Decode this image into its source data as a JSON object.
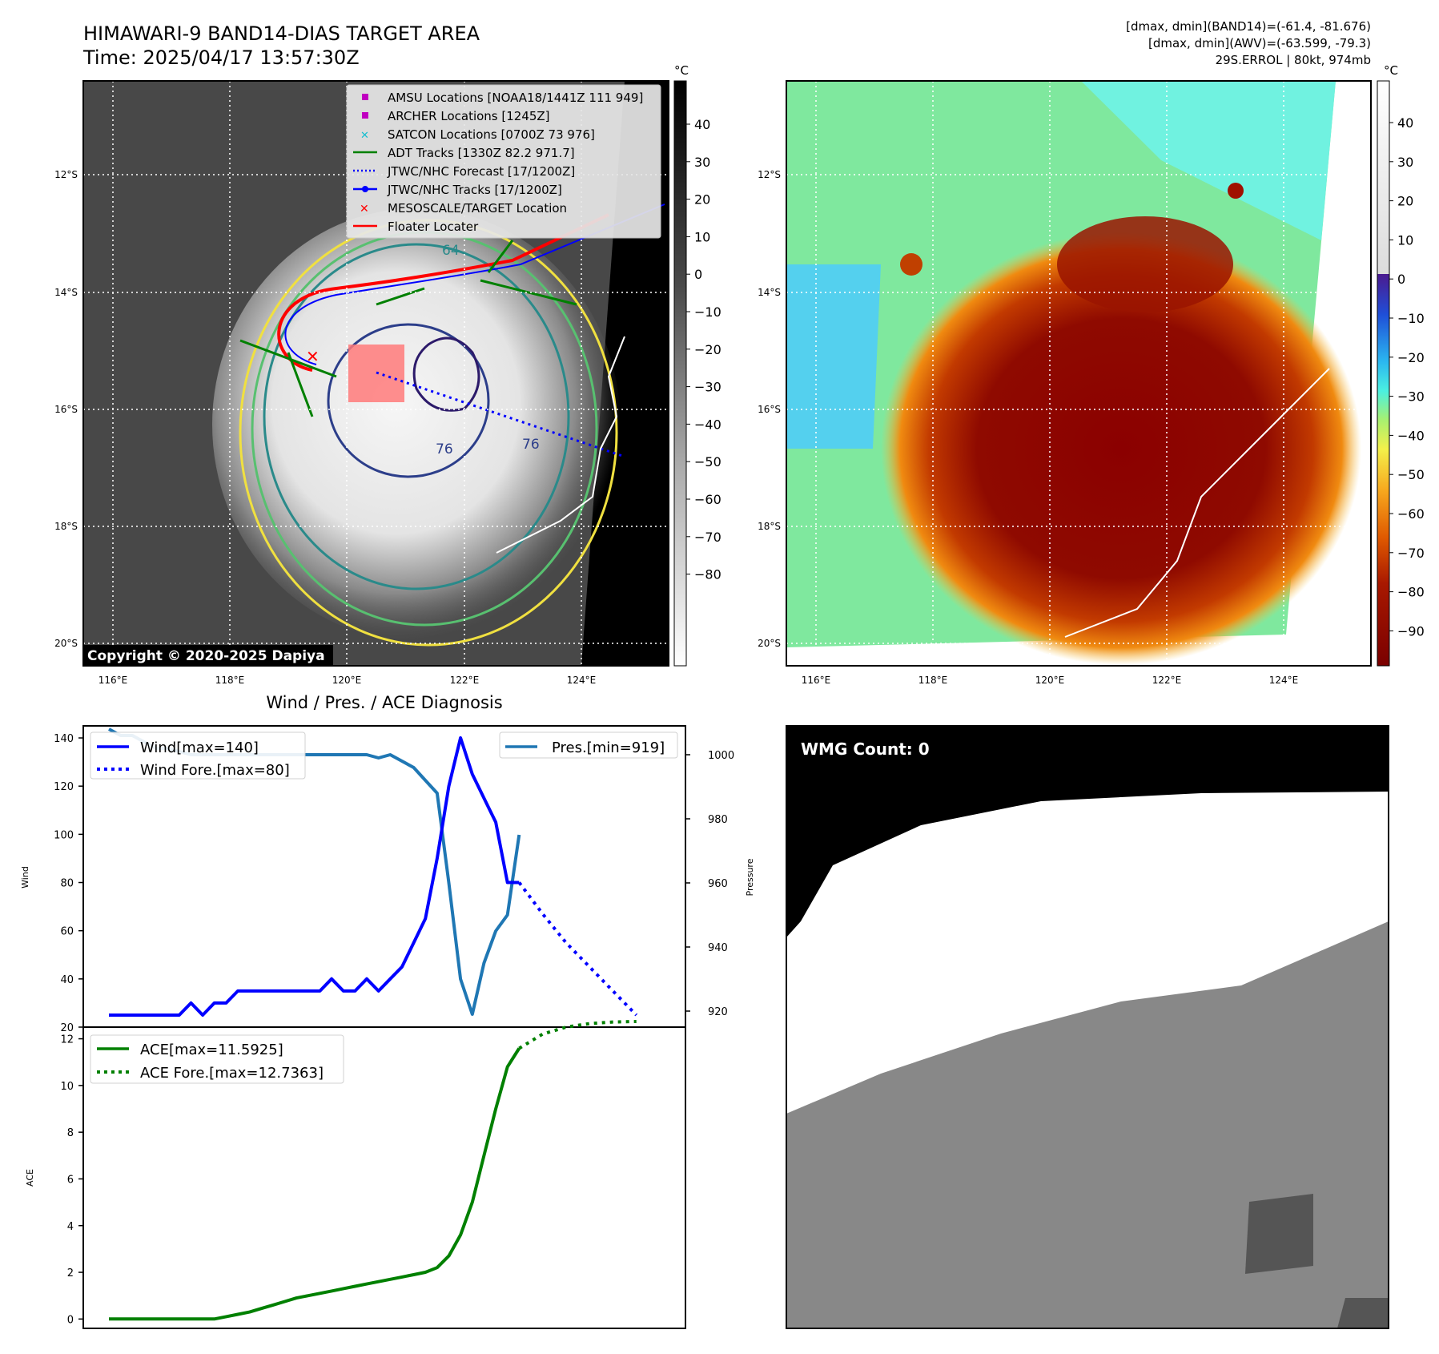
{
  "header": {
    "title_line1": "HIMAWARI-9 BAND14-DIAS TARGET AREA",
    "title_line2": "Time: 2025/04/17 13:57:30Z",
    "info_line1": "[dmax, dmin](BAND14)=(-61.4, -81.676)",
    "info_line2": "[dmax, dmin](AWV)=(-63.599, -79.3)",
    "info_line3": "29S.ERROL | 80kt, 974mb"
  },
  "map": {
    "lat_labels": [
      "12°S",
      "14°S",
      "16°S",
      "18°S",
      "20°S"
    ],
    "lon_labels": [
      "116°E",
      "118°E",
      "120°E",
      "122°E",
      "124°E"
    ],
    "copyright": "Copyright © 2020-2025 Dapiya",
    "contour_labels": [
      "64",
      "76",
      "76"
    ],
    "legend": [
      {
        "label": "AMSU Locations [NOAA18/1441Z 111 949]",
        "color": "#c000c0",
        "marker": "square"
      },
      {
        "label": "ARCHER Locations [1245Z]",
        "color": "#c000c0",
        "marker": "square"
      },
      {
        "label": "SATCON Locations [0700Z 73 976]",
        "color": "#17becf",
        "marker": "x"
      },
      {
        "label": "ADT Tracks [1330Z 82.2 971.7]",
        "color": "#008000",
        "marker": "line"
      },
      {
        "label": "JTWC/NHC Forecast [17/1200Z]",
        "color": "#0000ff",
        "marker": "dotted"
      },
      {
        "label": "JTWC/NHC Tracks [17/1200Z]",
        "color": "#0000ff",
        "marker": "line-dot"
      },
      {
        "label": "MESOSCALE/TARGET Location",
        "color": "#ff0000",
        "marker": "x"
      },
      {
        "label": "Floater Locater",
        "color": "#ff0000",
        "marker": "line"
      }
    ]
  },
  "colorbar_gray": {
    "unit": "°C",
    "ticks": [
      "40",
      "30",
      "20",
      "10",
      "0",
      "−10",
      "−20",
      "−30",
      "−40",
      "−50",
      "−60",
      "−70",
      "−80"
    ]
  },
  "colorbar_color": {
    "unit": "°C",
    "ticks": [
      "40",
      "30",
      "20",
      "10",
      "0",
      "−10",
      "−20",
      "−30",
      "−40",
      "−50",
      "−60",
      "−70",
      "−80",
      "−90"
    ]
  },
  "wmg": {
    "label": "WMG Count: 0"
  },
  "chart_data": [
    {
      "type": "line",
      "title": "Wind / Pres. / ACE Diagnosis",
      "ylabel": "Wind",
      "ylabel_right": "Pressure",
      "ylim": [
        20,
        145
      ],
      "ylim_right": [
        915,
        1009
      ],
      "yticks": [
        20,
        40,
        60,
        80,
        100,
        120,
        140
      ],
      "yticks_right": [
        920,
        940,
        960,
        980,
        1000
      ],
      "series": [
        {
          "name": "Wind[max=140]",
          "color": "#0000ff",
          "style": "solid",
          "x": [
            0,
            1,
            2,
            3,
            4,
            5,
            6,
            7,
            8,
            9,
            10,
            11,
            12,
            13,
            14,
            15,
            16,
            17,
            18,
            19,
            20,
            21,
            22,
            23,
            24,
            25,
            26,
            27,
            28,
            29,
            30,
            31,
            32,
            33,
            34,
            35
          ],
          "values": [
            25,
            25,
            25,
            25,
            25,
            25,
            25,
            30,
            25,
            30,
            30,
            35,
            35,
            35,
            35,
            35,
            35,
            35,
            35,
            40,
            35,
            35,
            40,
            35,
            40,
            45,
            55,
            65,
            90,
            120,
            140,
            125,
            115,
            105,
            80,
            80
          ]
        },
        {
          "name": "Wind Fore.[max=80]",
          "color": "#0000ff",
          "style": "dotted",
          "x": [
            35,
            37,
            39,
            41,
            43,
            45
          ],
          "values": [
            80,
            67,
            55,
            45,
            35,
            25
          ]
        },
        {
          "name": "Pres.[min=919]",
          "color": "#1f77b4",
          "style": "solid",
          "axis": "right",
          "x": [
            0,
            1,
            2,
            3,
            4,
            5,
            6,
            7,
            8,
            9,
            10,
            11,
            12,
            13,
            14,
            15,
            16,
            17,
            18,
            19,
            20,
            21,
            22,
            23,
            24,
            25,
            26,
            27,
            28,
            29,
            30,
            31,
            32,
            33,
            34,
            35
          ],
          "values": [
            1008,
            1006,
            1006,
            1004,
            1002,
            1002,
            1001,
            1000,
            1000,
            1000,
            1000,
            1000,
            1000,
            1000,
            1000,
            1000,
            1000,
            1000,
            1000,
            1000,
            1000,
            1000,
            1000,
            999,
            1000,
            998,
            996,
            992,
            988,
            960,
            930,
            919,
            935,
            945,
            950,
            975
          ]
        }
      ]
    },
    {
      "type": "line",
      "ylabel": "ACE",
      "ylim": [
        -0.4,
        12.5
      ],
      "yticks": [
        0,
        2,
        4,
        6,
        8,
        10,
        12
      ],
      "series": [
        {
          "name": "ACE[max=11.5925]",
          "color": "#008000",
          "style": "solid",
          "x": [
            0,
            1,
            2,
            3,
            4,
            5,
            6,
            7,
            8,
            9,
            10,
            11,
            12,
            13,
            14,
            15,
            16,
            17,
            18,
            19,
            20,
            21,
            22,
            23,
            24,
            25,
            26,
            27,
            28,
            29,
            30,
            31,
            32,
            33,
            34,
            35
          ],
          "values": [
            0,
            0,
            0,
            0,
            0,
            0,
            0,
            0,
            0,
            0,
            0.1,
            0.2,
            0.3,
            0.45,
            0.6,
            0.75,
            0.9,
            1.0,
            1.1,
            1.2,
            1.3,
            1.4,
            1.5,
            1.6,
            1.7,
            1.8,
            1.9,
            2.0,
            2.2,
            2.7,
            3.6,
            5.0,
            7.0,
            9.0,
            10.8,
            11.59
          ]
        },
        {
          "name": "ACE Fore.[max=12.7363]",
          "color": "#008000",
          "style": "dotted",
          "x": [
            35,
            37,
            39,
            41,
            43,
            45
          ],
          "values": [
            11.59,
            12.2,
            12.5,
            12.65,
            12.72,
            12.74
          ]
        }
      ]
    }
  ]
}
